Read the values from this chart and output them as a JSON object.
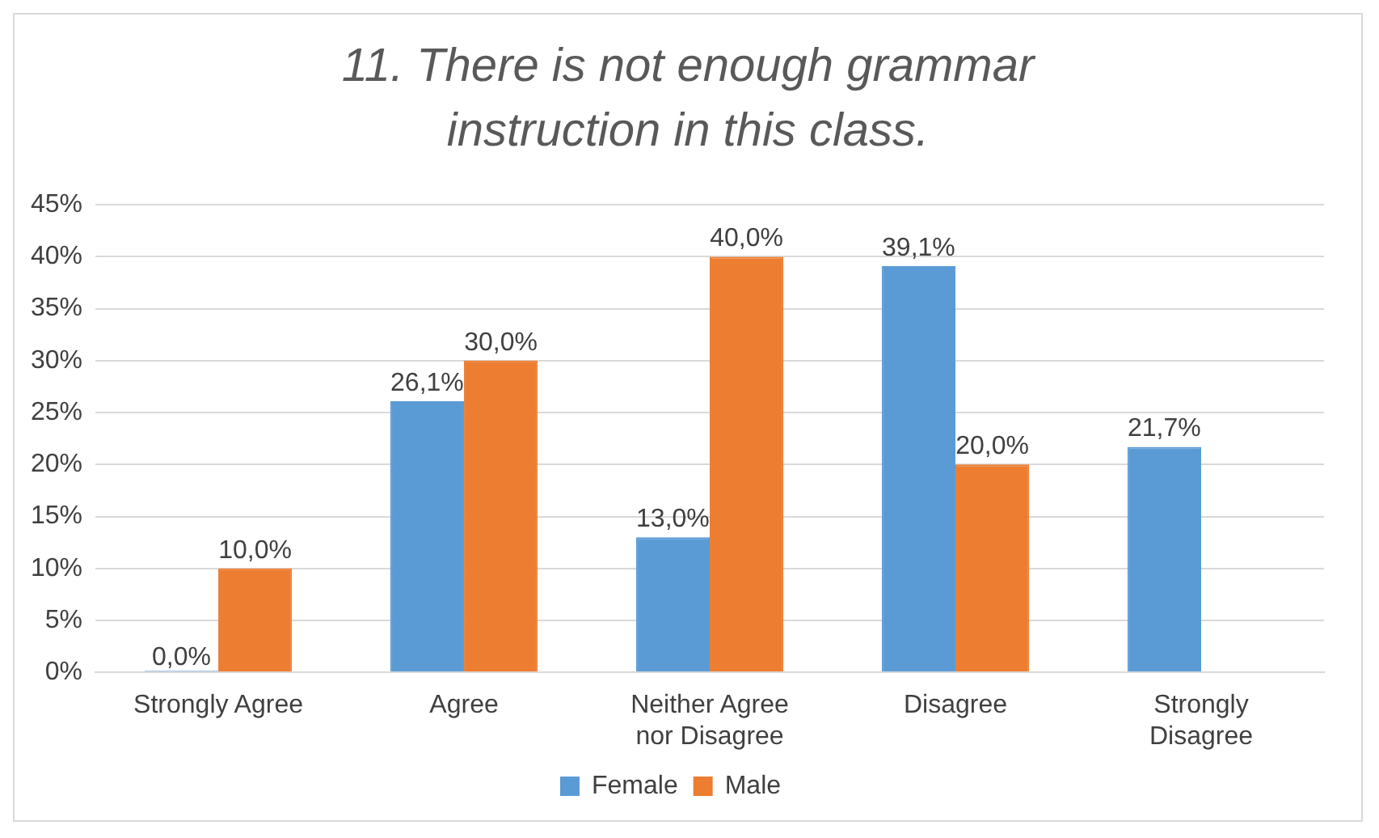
{
  "chart_data": {
    "type": "bar",
    "title": "11. There is not enough grammar instruction in this class.",
    "categories": [
      "Strongly Agree",
      "Agree",
      "Neither Agree nor Disagree",
      "Disagree",
      "Strongly Disagree"
    ],
    "series": [
      {
        "name": "Female",
        "color": "#5b9bd5",
        "values": [
          0,
          26.1,
          13.0,
          39.1,
          21.7
        ],
        "value_labels": [
          "0,0%",
          "26,1%",
          "13,0%",
          "39,1%",
          "21,7%"
        ]
      },
      {
        "name": "Male",
        "color": "#ed7d31",
        "values": [
          10,
          30,
          40,
          20,
          null
        ],
        "value_labels": [
          "10,0%",
          "30,0%",
          "40,0%",
          "20,0%",
          null
        ]
      }
    ],
    "ylim": [
      0,
      45
    ],
    "yticks": [
      {
        "value": 0,
        "label": "0%"
      },
      {
        "value": 5,
        "label": "5%"
      },
      {
        "value": 10,
        "label": "10%"
      },
      {
        "value": 15,
        "label": "15%"
      },
      {
        "value": 20,
        "label": "20%"
      },
      {
        "value": 25,
        "label": "25%"
      },
      {
        "value": 30,
        "label": "30%"
      },
      {
        "value": 35,
        "label": "35%"
      },
      {
        "value": 40,
        "label": "40%"
      },
      {
        "value": 45,
        "label": "45%"
      }
    ],
    "grid": "y",
    "legend": "bottom"
  }
}
